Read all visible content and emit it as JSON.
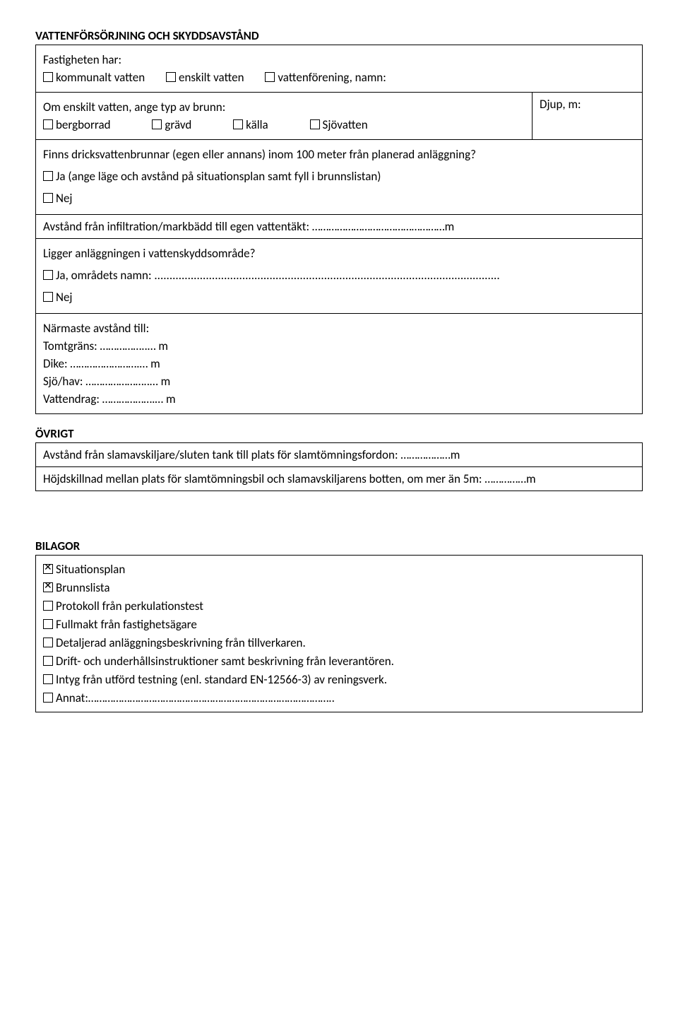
{
  "vatten": {
    "heading": "VATTENFÖRSÖRJNING OCH SKYDDSAVSTÅND",
    "fastighet_label": "Fastigheten har:",
    "opts": {
      "kommunalt": "kommunalt vatten",
      "enskilt": "enskilt vatten",
      "forening": "vattenförening, namn:"
    },
    "brunn_label": "Om enskilt vatten, ange typ av brunn:",
    "brunn_opts": {
      "bergborrad": "bergborrad",
      "gravd": "grävd",
      "kalla": "källa",
      "sjovatten": "Sjövatten"
    },
    "djup_label": "Djup, m:",
    "dricks_label": "Finns dricksvattenbrunnar (egen eller annans) inom 100 meter från planerad anläggning?",
    "dricks_ja": "Ja (ange läge och avstånd på situationsplan samt fyll i brunnslistan)",
    "dricks_nej": "Nej",
    "infil_label_a": "Avstånd från infiltration/markbädd till egen vattentäkt: ",
    "infil_label_b": "…………………………………………m",
    "skydd_label": "Ligger anläggningen i vattenskyddsområde?",
    "skydd_ja": "Ja, områdets namn: ..................................................................................................................",
    "skydd_nej": "Nej",
    "narmast_label": "Närmaste avstånd till:",
    "tomt": "Tomtgräns: ……………..…   m",
    "dike": "Dike: …………………….…   m",
    "sjo": "Sjö/hav: …………………..…   m",
    "vattendrag": "Vattendrag: ……………….…   m"
  },
  "ovrigt": {
    "heading": "ÖVRIGT",
    "slam_a": "Avstånd från slamavskiljare/sluten tank till plats för slamtömningsfordon: ",
    "slam_b": "………………m",
    "hojd_a": "Höjdskillnad mellan plats för slamtömningsbil och slamavskiljarens botten, om mer än 5m: ",
    "hojd_b": "……………m"
  },
  "bilagor": {
    "heading": "BILAGOR",
    "items": [
      {
        "label": "Situationsplan",
        "checked": true
      },
      {
        "label": "Brunnslista",
        "checked": true
      },
      {
        "label": "Protokoll från perkulationstest",
        "checked": false
      },
      {
        "label": "Fullmakt från fastighetsägare",
        "checked": false
      },
      {
        "label": "Detaljerad anläggningsbeskrivning från tillverkaren.",
        "checked": false
      },
      {
        "label": "Drift- och underhållsinstruktioner samt beskrivning från leverantören.",
        "checked": false
      },
      {
        "label": "Intyg från utförd testning (enl. standard EN-12566-3) av reningsverk.",
        "checked": false
      },
      {
        "label": "Annat:……………………………………………………………………………..",
        "checked": false
      }
    ]
  }
}
